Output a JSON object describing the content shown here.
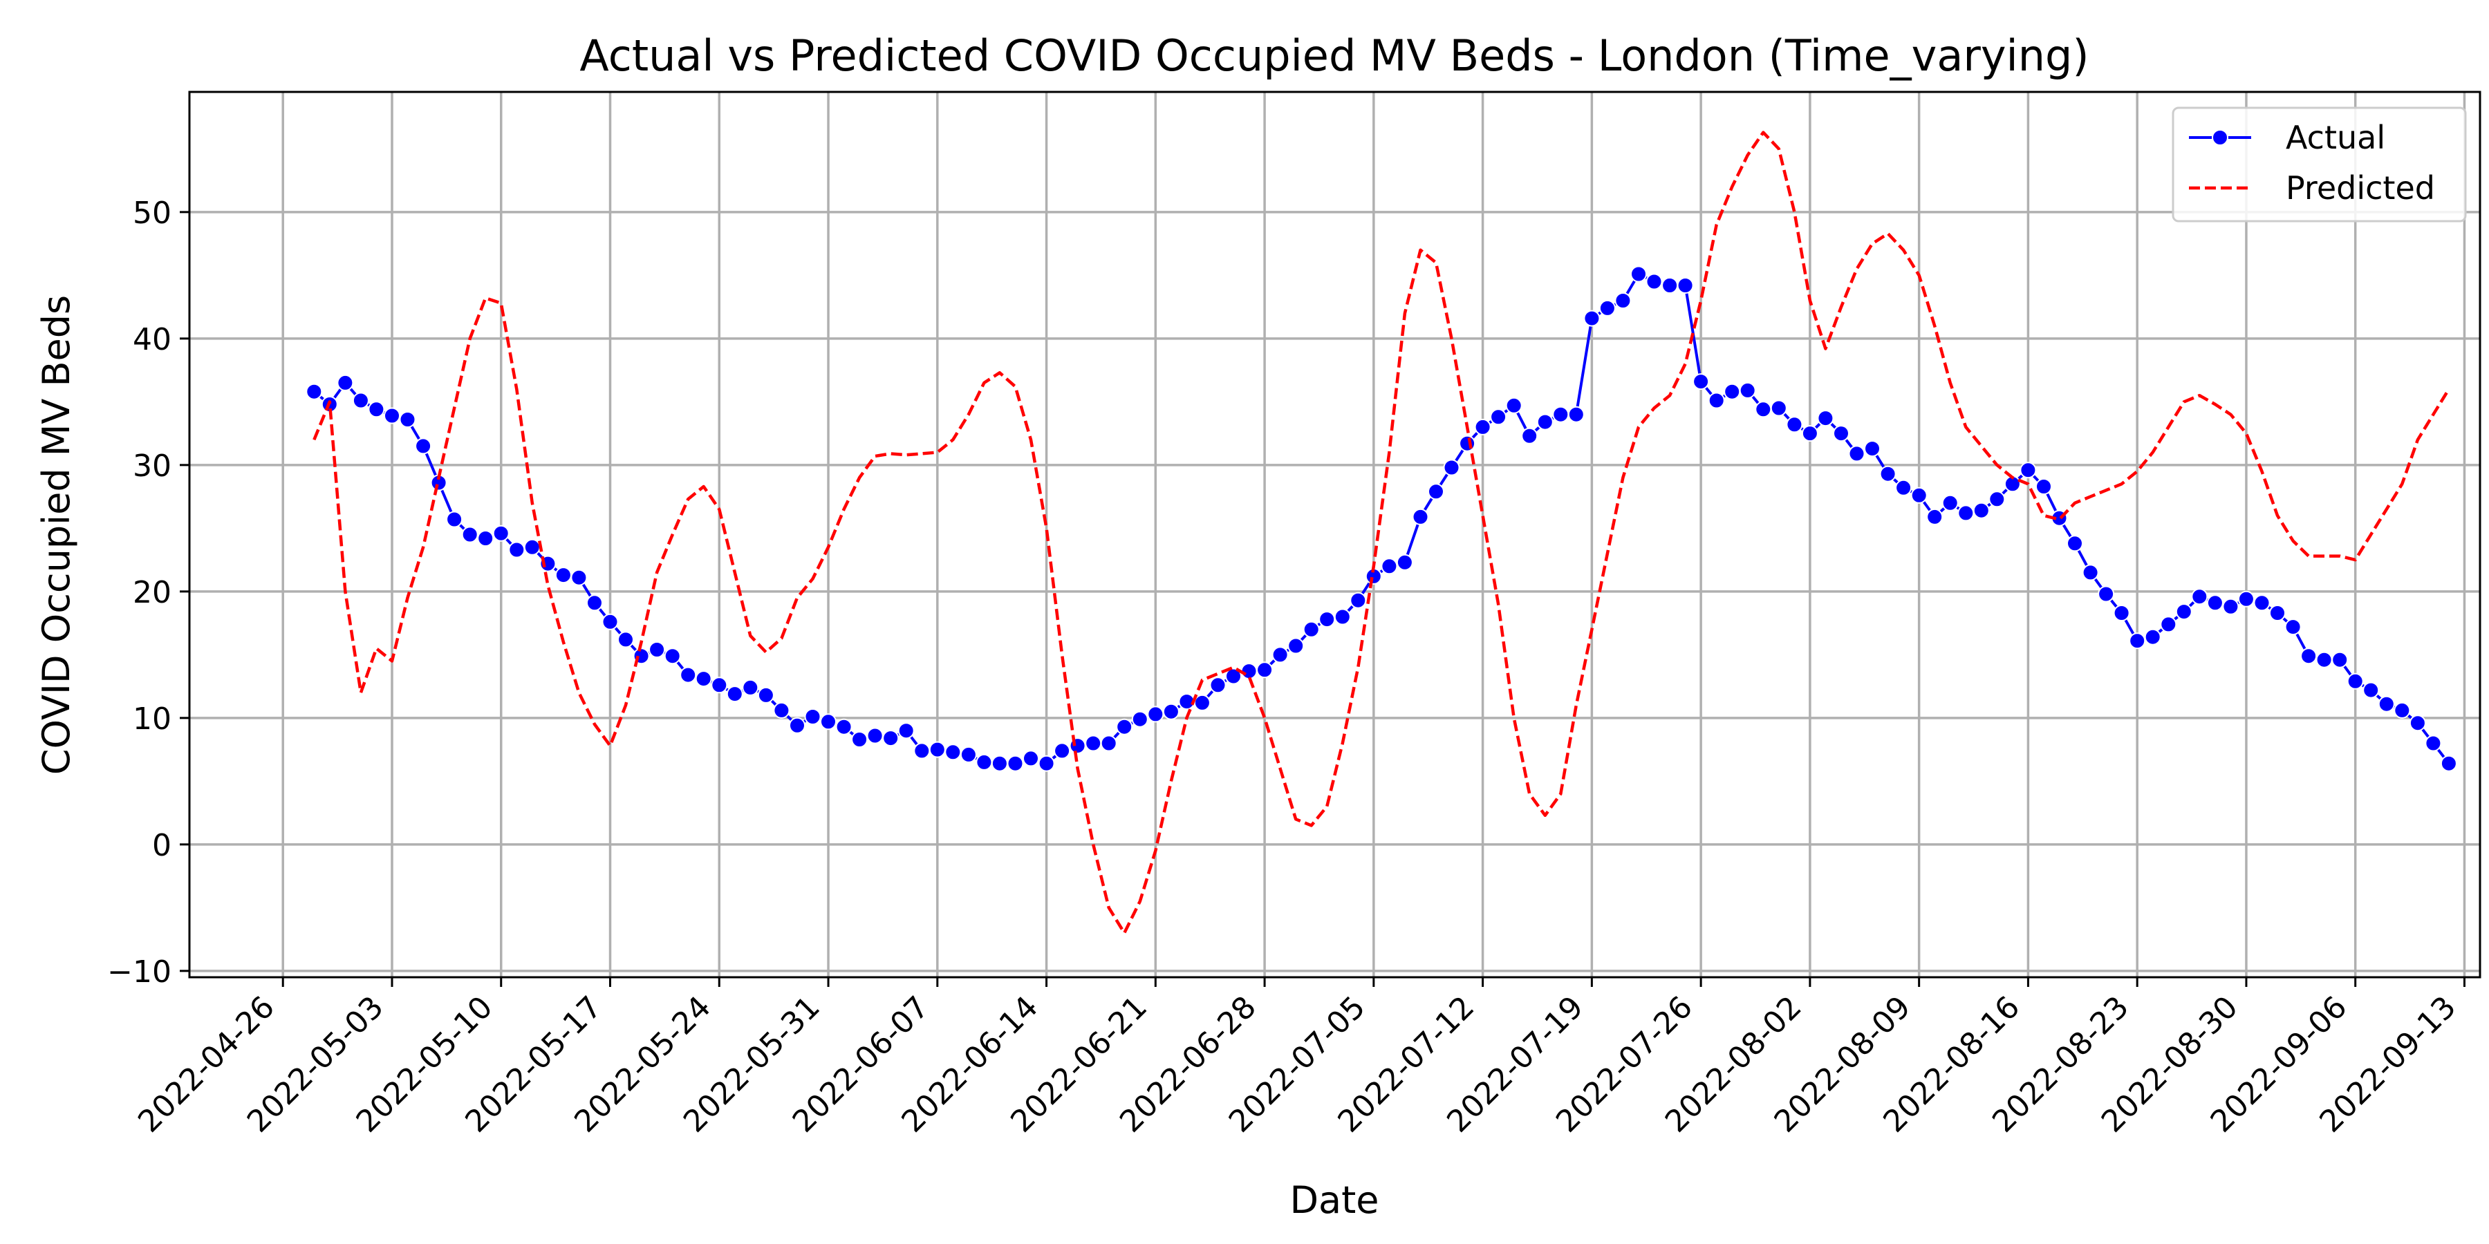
{
  "chart_data": {
    "type": "line",
    "title": "Actual vs Predicted COVID Occupied MV Beds - London (Time_varying)",
    "xlabel": "Date",
    "ylabel": "COVID Occupied MV Beds",
    "x_ticks": [
      "2022-04-26",
      "2022-05-03",
      "2022-05-10",
      "2022-05-17",
      "2022-05-24",
      "2022-05-31",
      "2022-06-07",
      "2022-06-14",
      "2022-06-21",
      "2022-06-28",
      "2022-07-05",
      "2022-07-12",
      "2022-07-19",
      "2022-07-26",
      "2022-08-02",
      "2022-08-09",
      "2022-08-16",
      "2022-08-23",
      "2022-08-30",
      "2022-09-06",
      "2022-09-13"
    ],
    "y_ticks": [
      -10,
      0,
      10,
      20,
      30,
      40,
      50
    ],
    "y_tick_labels": [
      "−10",
      "0",
      "10",
      "20",
      "30",
      "40",
      "50"
    ],
    "xlim": [
      "2022-04-20",
      "2022-09-14"
    ],
    "ylim": [
      -10.5,
      59.5
    ],
    "grid": true,
    "legend_position": "top-right",
    "series": [
      {
        "name": "Actual",
        "color": "#0000ff",
        "style": "solid",
        "marker": "circle",
        "points": [
          [
            "2022-04-28",
            35.8
          ],
          [
            "2022-04-29",
            34.8
          ],
          [
            "2022-04-30",
            36.5
          ],
          [
            "2022-05-01",
            35.1
          ],
          [
            "2022-05-02",
            34.4
          ],
          [
            "2022-05-03",
            33.9
          ],
          [
            "2022-05-04",
            33.6
          ],
          [
            "2022-05-05",
            31.5
          ],
          [
            "2022-05-06",
            28.6
          ],
          [
            "2022-05-07",
            25.7
          ],
          [
            "2022-05-08",
            24.5
          ],
          [
            "2022-05-09",
            24.2
          ],
          [
            "2022-05-10",
            24.6
          ],
          [
            "2022-05-11",
            23.3
          ],
          [
            "2022-05-12",
            23.5
          ],
          [
            "2022-05-13",
            22.2
          ],
          [
            "2022-05-14",
            21.3
          ],
          [
            "2022-05-15",
            21.1
          ],
          [
            "2022-05-16",
            19.1
          ],
          [
            "2022-05-17",
            17.6
          ],
          [
            "2022-05-18",
            16.2
          ],
          [
            "2022-05-19",
            14.9
          ],
          [
            "2022-05-20",
            15.4
          ],
          [
            "2022-05-21",
            14.9
          ],
          [
            "2022-05-22",
            13.4
          ],
          [
            "2022-05-23",
            13.1
          ],
          [
            "2022-05-24",
            12.6
          ],
          [
            "2022-05-25",
            11.9
          ],
          [
            "2022-05-26",
            12.4
          ],
          [
            "2022-05-27",
            11.8
          ],
          [
            "2022-05-28",
            10.6
          ],
          [
            "2022-05-29",
            9.4
          ],
          [
            "2022-05-30",
            10.1
          ],
          [
            "2022-05-31",
            9.7
          ],
          [
            "2022-06-01",
            9.3
          ],
          [
            "2022-06-02",
            8.3
          ],
          [
            "2022-06-03",
            8.6
          ],
          [
            "2022-06-04",
            8.4
          ],
          [
            "2022-06-05",
            9.0
          ],
          [
            "2022-06-06",
            7.4
          ],
          [
            "2022-06-07",
            7.5
          ],
          [
            "2022-06-08",
            7.3
          ],
          [
            "2022-06-09",
            7.1
          ],
          [
            "2022-06-10",
            6.5
          ],
          [
            "2022-06-11",
            6.4
          ],
          [
            "2022-06-12",
            6.4
          ],
          [
            "2022-06-13",
            6.8
          ],
          [
            "2022-06-14",
            6.4
          ],
          [
            "2022-06-15",
            7.4
          ],
          [
            "2022-06-16",
            7.8
          ],
          [
            "2022-06-17",
            8.0
          ],
          [
            "2022-06-18",
            8.0
          ],
          [
            "2022-06-19",
            9.3
          ],
          [
            "2022-06-20",
            9.9
          ],
          [
            "2022-06-21",
            10.3
          ],
          [
            "2022-06-22",
            10.5
          ],
          [
            "2022-06-23",
            11.3
          ],
          [
            "2022-06-24",
            11.2
          ],
          [
            "2022-06-25",
            12.6
          ],
          [
            "2022-06-26",
            13.3
          ],
          [
            "2022-06-27",
            13.7
          ],
          [
            "2022-06-28",
            13.8
          ],
          [
            "2022-06-29",
            15.0
          ],
          [
            "2022-06-30",
            15.7
          ],
          [
            "2022-07-01",
            17.0
          ],
          [
            "2022-07-02",
            17.8
          ],
          [
            "2022-07-03",
            18.0
          ],
          [
            "2022-07-04",
            19.3
          ],
          [
            "2022-07-05",
            21.2
          ],
          [
            "2022-07-06",
            22.0
          ],
          [
            "2022-07-07",
            22.3
          ],
          [
            "2022-07-08",
            25.9
          ],
          [
            "2022-07-09",
            27.9
          ],
          [
            "2022-07-10",
            29.8
          ],
          [
            "2022-07-11",
            31.7
          ],
          [
            "2022-07-12",
            33.0
          ],
          [
            "2022-07-13",
            33.8
          ],
          [
            "2022-07-14",
            34.7
          ],
          [
            "2022-07-15",
            32.3
          ],
          [
            "2022-07-16",
            33.4
          ],
          [
            "2022-07-17",
            34.0
          ],
          [
            "2022-07-18",
            34.0
          ],
          [
            "2022-07-19",
            41.6
          ],
          [
            "2022-07-20",
            42.4
          ],
          [
            "2022-07-21",
            43.0
          ],
          [
            "2022-07-22",
            45.1
          ],
          [
            "2022-07-23",
            44.5
          ],
          [
            "2022-07-24",
            44.2
          ],
          [
            "2022-07-25",
            44.2
          ],
          [
            "2022-07-26",
            36.6
          ],
          [
            "2022-07-27",
            35.1
          ],
          [
            "2022-07-28",
            35.8
          ],
          [
            "2022-07-29",
            35.9
          ],
          [
            "2022-07-30",
            34.4
          ],
          [
            "2022-07-31",
            34.5
          ],
          [
            "2022-08-01",
            33.2
          ],
          [
            "2022-08-02",
            32.5
          ],
          [
            "2022-08-03",
            33.7
          ],
          [
            "2022-08-04",
            32.5
          ],
          [
            "2022-08-05",
            30.9
          ],
          [
            "2022-08-06",
            31.3
          ],
          [
            "2022-08-07",
            29.3
          ],
          [
            "2022-08-08",
            28.2
          ],
          [
            "2022-08-09",
            27.6
          ],
          [
            "2022-08-10",
            25.9
          ],
          [
            "2022-08-11",
            27.0
          ],
          [
            "2022-08-12",
            26.2
          ],
          [
            "2022-08-13",
            26.4
          ],
          [
            "2022-08-14",
            27.3
          ],
          [
            "2022-08-15",
            28.5
          ],
          [
            "2022-08-16",
            29.6
          ],
          [
            "2022-08-17",
            28.3
          ],
          [
            "2022-08-18",
            25.8
          ],
          [
            "2022-08-19",
            23.8
          ],
          [
            "2022-08-20",
            21.5
          ],
          [
            "2022-08-21",
            19.8
          ],
          [
            "2022-08-22",
            18.3
          ],
          [
            "2022-08-23",
            16.1
          ],
          [
            "2022-08-24",
            16.4
          ],
          [
            "2022-08-25",
            17.4
          ],
          [
            "2022-08-26",
            18.4
          ],
          [
            "2022-08-27",
            19.6
          ],
          [
            "2022-08-28",
            19.1
          ],
          [
            "2022-08-29",
            18.8
          ],
          [
            "2022-08-30",
            19.4
          ],
          [
            "2022-08-31",
            19.1
          ],
          [
            "2022-09-01",
            18.3
          ],
          [
            "2022-09-02",
            17.2
          ],
          [
            "2022-09-03",
            14.9
          ],
          [
            "2022-09-04",
            14.6
          ],
          [
            "2022-09-05",
            14.6
          ],
          [
            "2022-09-06",
            12.9
          ],
          [
            "2022-09-07",
            12.2
          ],
          [
            "2022-09-08",
            11.1
          ],
          [
            "2022-09-09",
            10.6
          ],
          [
            "2022-09-10",
            9.6
          ],
          [
            "2022-09-11",
            8.0
          ],
          [
            "2022-09-12",
            6.4
          ]
        ]
      },
      {
        "name": "Predicted",
        "color": "#ff0000",
        "style": "dashed",
        "marker": "none",
        "points": [
          [
            "2022-04-28",
            32
          ],
          [
            "2022-04-29",
            35
          ],
          [
            "2022-04-30",
            20
          ],
          [
            "2022-05-01",
            12
          ],
          [
            "2022-05-02",
            15.5
          ],
          [
            "2022-05-03",
            14.5
          ],
          [
            "2022-05-04",
            19.5
          ],
          [
            "2022-05-05",
            23.5
          ],
          [
            "2022-05-06",
            29
          ],
          [
            "2022-05-07",
            34.5
          ],
          [
            "2022-05-08",
            40
          ],
          [
            "2022-05-09",
            43.2
          ],
          [
            "2022-05-10",
            42.8
          ],
          [
            "2022-05-11",
            36
          ],
          [
            "2022-05-12",
            27
          ],
          [
            "2022-05-13",
            20.5
          ],
          [
            "2022-05-14",
            16
          ],
          [
            "2022-05-15",
            12
          ],
          [
            "2022-05-16",
            9.5
          ],
          [
            "2022-05-17",
            7.8
          ],
          [
            "2022-05-18",
            11
          ],
          [
            "2022-05-19",
            16
          ],
          [
            "2022-05-20",
            21.5
          ],
          [
            "2022-05-21",
            24.5
          ],
          [
            "2022-05-22",
            27.3
          ],
          [
            "2022-05-23",
            28.3
          ],
          [
            "2022-05-24",
            26.5
          ],
          [
            "2022-05-25",
            21.5
          ],
          [
            "2022-05-26",
            16.5
          ],
          [
            "2022-05-27",
            15.2
          ],
          [
            "2022-05-28",
            16.3
          ],
          [
            "2022-05-29",
            19.5
          ],
          [
            "2022-05-30",
            21
          ],
          [
            "2022-05-31",
            23.5
          ],
          [
            "2022-06-01",
            26.5
          ],
          [
            "2022-06-02",
            29
          ],
          [
            "2022-06-03",
            30.7
          ],
          [
            "2022-06-04",
            30.9
          ],
          [
            "2022-06-05",
            30.8
          ],
          [
            "2022-06-06",
            30.9
          ],
          [
            "2022-06-07",
            31
          ],
          [
            "2022-06-08",
            32
          ],
          [
            "2022-06-09",
            34
          ],
          [
            "2022-06-10",
            36.5
          ],
          [
            "2022-06-11",
            37.3
          ],
          [
            "2022-06-12",
            36.2
          ],
          [
            "2022-06-13",
            32
          ],
          [
            "2022-06-14",
            25
          ],
          [
            "2022-06-15",
            15
          ],
          [
            "2022-06-16",
            6
          ],
          [
            "2022-06-17",
            0
          ],
          [
            "2022-06-18",
            -5
          ],
          [
            "2022-06-19",
            -7
          ],
          [
            "2022-06-20",
            -4.5
          ],
          [
            "2022-06-21",
            -0.5
          ],
          [
            "2022-06-22",
            5
          ],
          [
            "2022-06-23",
            10
          ],
          [
            "2022-06-24",
            13
          ],
          [
            "2022-06-25",
            13.5
          ],
          [
            "2022-06-26",
            14
          ],
          [
            "2022-06-27",
            13.3
          ],
          [
            "2022-06-28",
            10
          ],
          [
            "2022-06-29",
            6
          ],
          [
            "2022-06-30",
            2
          ],
          [
            "2022-07-01",
            1.5
          ],
          [
            "2022-07-02",
            3
          ],
          [
            "2022-07-03",
            8
          ],
          [
            "2022-07-04",
            14
          ],
          [
            "2022-07-05",
            22
          ],
          [
            "2022-07-06",
            31
          ],
          [
            "2022-07-07",
            42
          ],
          [
            "2022-07-08",
            47
          ],
          [
            "2022-07-09",
            46
          ],
          [
            "2022-07-10",
            40
          ],
          [
            "2022-07-11",
            33
          ],
          [
            "2022-07-12",
            26
          ],
          [
            "2022-07-13",
            19
          ],
          [
            "2022-07-14",
            10
          ],
          [
            "2022-07-15",
            4
          ],
          [
            "2022-07-16",
            2.3
          ],
          [
            "2022-07-17",
            4
          ],
          [
            "2022-07-18",
            11
          ],
          [
            "2022-07-19",
            17
          ],
          [
            "2022-07-20",
            23
          ],
          [
            "2022-07-21",
            29
          ],
          [
            "2022-07-22",
            33
          ],
          [
            "2022-07-23",
            34.5
          ],
          [
            "2022-07-24",
            35.5
          ],
          [
            "2022-07-25",
            38
          ],
          [
            "2022-07-26",
            43
          ],
          [
            "2022-07-27",
            49
          ],
          [
            "2022-07-28",
            52
          ],
          [
            "2022-07-29",
            54.5
          ],
          [
            "2022-07-30",
            56.3
          ],
          [
            "2022-07-31",
            55
          ],
          [
            "2022-08-01",
            50
          ],
          [
            "2022-08-02",
            43
          ],
          [
            "2022-08-03",
            39.2
          ],
          [
            "2022-08-04",
            42.5
          ],
          [
            "2022-08-05",
            45.5
          ],
          [
            "2022-08-06",
            47.5
          ],
          [
            "2022-08-07",
            48.3
          ],
          [
            "2022-08-08",
            47
          ],
          [
            "2022-08-09",
            45
          ],
          [
            "2022-08-10",
            41
          ],
          [
            "2022-08-11",
            36.5
          ],
          [
            "2022-08-12",
            33
          ],
          [
            "2022-08-13",
            31.5
          ],
          [
            "2022-08-14",
            30
          ],
          [
            "2022-08-15",
            29
          ],
          [
            "2022-08-16",
            28.5
          ],
          [
            "2022-08-17",
            26
          ],
          [
            "2022-08-18",
            25.7
          ],
          [
            "2022-08-19",
            27
          ],
          [
            "2022-08-20",
            27.5
          ],
          [
            "2022-08-21",
            28
          ],
          [
            "2022-08-22",
            28.5
          ],
          [
            "2022-08-23",
            29.5
          ],
          [
            "2022-08-24",
            31
          ],
          [
            "2022-08-25",
            33
          ],
          [
            "2022-08-26",
            35
          ],
          [
            "2022-08-27",
            35.5
          ],
          [
            "2022-08-28",
            34.8
          ],
          [
            "2022-08-29",
            34
          ],
          [
            "2022-08-30",
            32.5
          ],
          [
            "2022-08-31",
            29.5
          ],
          [
            "2022-09-01",
            26
          ],
          [
            "2022-09-02",
            24
          ],
          [
            "2022-09-03",
            22.8
          ],
          [
            "2022-09-04",
            22.8
          ],
          [
            "2022-09-05",
            22.8
          ],
          [
            "2022-09-06",
            22.5
          ],
          [
            "2022-09-07",
            24.5
          ],
          [
            "2022-09-08",
            26.5
          ],
          [
            "2022-09-09",
            28.5
          ],
          [
            "2022-09-10",
            32
          ],
          [
            "2022-09-12",
            36
          ]
        ]
      }
    ]
  }
}
